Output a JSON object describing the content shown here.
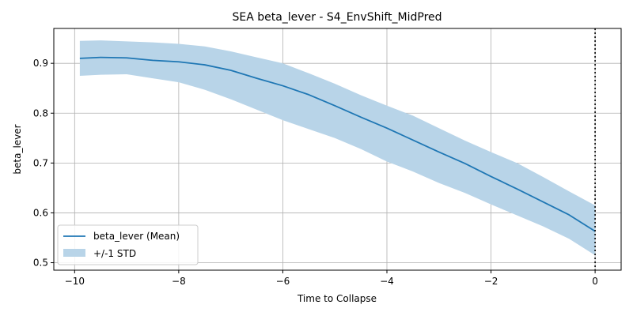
{
  "chart_data": {
    "type": "line",
    "title": "SEA beta_lever - S4_EnvShift_MidPred",
    "xlabel": "Time to Collapse",
    "ylabel": "beta_lever",
    "xlim": [
      -10.4,
      0.5
    ],
    "ylim": [
      0.485,
      0.97
    ],
    "xticks": [
      -10,
      -8,
      -6,
      -4,
      -2,
      0
    ],
    "xtick_labels": [
      "−10",
      "−8",
      "−6",
      "−4",
      "−2",
      "0"
    ],
    "yticks": [
      0.5,
      0.6,
      0.7,
      0.8,
      0.9
    ],
    "ytick_labels": [
      "0.5",
      "0.6",
      "0.7",
      "0.8",
      "0.9"
    ],
    "grid": true,
    "legend_position": "lower-left",
    "colors": {
      "mean_line": "#1f77b4",
      "std_band": "#b8d4e8",
      "vline": "#000000"
    },
    "series": [
      {
        "name": "beta_lever (Mean)",
        "kind": "line",
        "x": [
          -9.9,
          -9.5,
          -9.0,
          -8.5,
          -8.0,
          -7.5,
          -7.0,
          -6.5,
          -6.0,
          -5.5,
          -5.0,
          -4.5,
          -4.0,
          -3.5,
          -3.0,
          -2.5,
          -2.0,
          -1.5,
          -1.0,
          -0.5,
          0.0
        ],
        "y": [
          0.91,
          0.912,
          0.911,
          0.906,
          0.903,
          0.897,
          0.886,
          0.87,
          0.855,
          0.837,
          0.815,
          0.792,
          0.77,
          0.746,
          0.722,
          0.699,
          0.673,
          0.648,
          0.622,
          0.596,
          0.563
        ]
      },
      {
        "name": "+/-1 STD",
        "kind": "band",
        "x": [
          -9.9,
          -9.5,
          -9.0,
          -8.5,
          -8.0,
          -7.5,
          -7.0,
          -6.5,
          -6.0,
          -5.5,
          -5.0,
          -4.5,
          -4.0,
          -3.5,
          -3.0,
          -2.5,
          -2.0,
          -1.5,
          -1.0,
          -0.5,
          0.0
        ],
        "lower": [
          0.875,
          0.877,
          0.878,
          0.87,
          0.862,
          0.847,
          0.828,
          0.807,
          0.786,
          0.768,
          0.75,
          0.728,
          0.703,
          0.683,
          0.66,
          0.64,
          0.617,
          0.595,
          0.573,
          0.548,
          0.515
        ],
        "upper": [
          0.945,
          0.946,
          0.944,
          0.942,
          0.939,
          0.934,
          0.924,
          0.912,
          0.9,
          0.88,
          0.859,
          0.836,
          0.815,
          0.795,
          0.77,
          0.745,
          0.722,
          0.7,
          0.672,
          0.643,
          0.615
        ]
      }
    ],
    "vline": {
      "x": 0,
      "style": "dotted"
    }
  }
}
